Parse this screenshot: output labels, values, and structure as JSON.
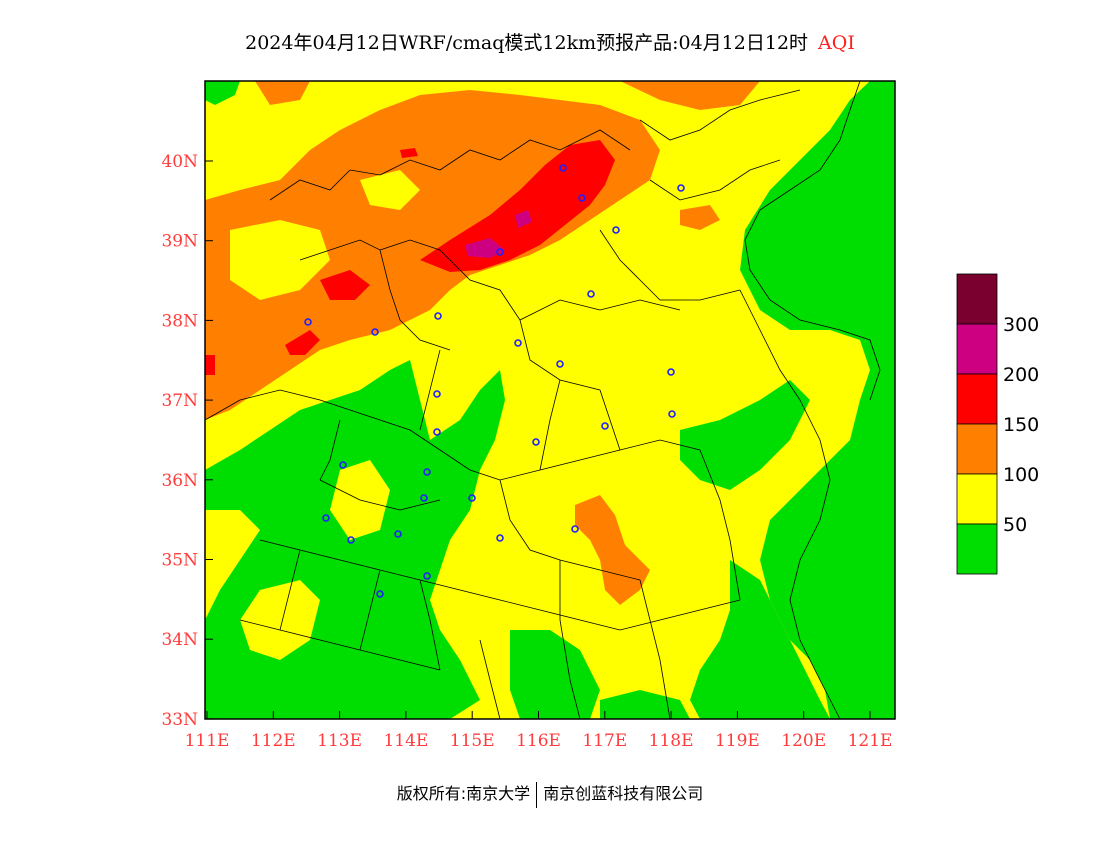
{
  "title": {
    "main": "2024年04月12日WRF/cmaq模式12km预报产品:04月12日12时",
    "variable": "AQI"
  },
  "axes": {
    "lon_labels": [
      "111E",
      "112E",
      "113E",
      "114E",
      "115E",
      "116E",
      "117E",
      "118E",
      "119E",
      "120E",
      "121E"
    ],
    "lat_labels": [
      "40N",
      "39N",
      "38N",
      "37N",
      "36N",
      "35N",
      "34N",
      "33N"
    ]
  },
  "legend": {
    "levels": [
      {
        "label": "",
        "color": "#7a0030"
      },
      {
        "label": "300",
        "color": "#cc0080"
      },
      {
        "label": "200",
        "color": "#ff0000"
      },
      {
        "label": "150",
        "color": "#ff8000"
      },
      {
        "label": "100",
        "color": "#ffff00"
      },
      {
        "label": "50",
        "color": "#00dd00"
      }
    ]
  },
  "colors": {
    "good": "#00dd00",
    "moderate": "#ffff00",
    "unhealthy_sensitive": "#ff8000",
    "unhealthy": "#ff0000",
    "very_unhealthy": "#cc0080",
    "hazardous": "#7a0030",
    "axis_text": "#ff3b3b",
    "station_marker": "#2020ff"
  },
  "footer": {
    "copyright": "版权所有:南京大学",
    "company": "南京创蓝科技有限公司"
  }
}
